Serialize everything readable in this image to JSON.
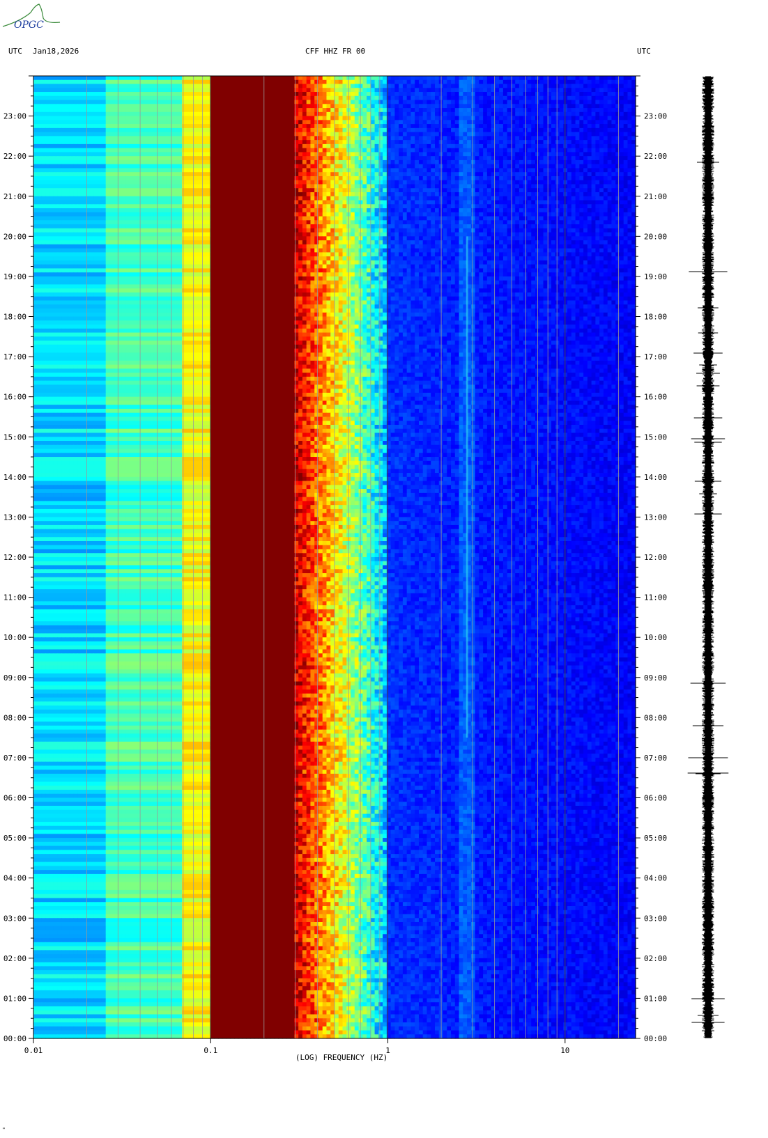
{
  "logo": {
    "text": "OPGC"
  },
  "header": {
    "left_tz": "UTC",
    "date": "Jan18,2026",
    "station": "CFF HHZ FR 00",
    "right_tz": "UTC"
  },
  "footer_mark": "\"",
  "chart_data": {
    "type": "heatmap",
    "title": "CFF HHZ FR 00",
    "subtitle": "Jan18,2026",
    "xlabel": "(LOG) FREQUENCY (HZ)",
    "ylabel": "UTC",
    "x_scale": "log",
    "xlim": [
      0.01,
      25
    ],
    "x_ticks": [
      0.01,
      0.1,
      1,
      10
    ],
    "x_tick_labels": [
      "0.01",
      "0.1",
      "1",
      "10"
    ],
    "y_ticks": [
      "00:00",
      "01:00",
      "02:00",
      "03:00",
      "04:00",
      "05:00",
      "06:00",
      "07:00",
      "08:00",
      "09:00",
      "10:00",
      "11:00",
      "12:00",
      "13:00",
      "14:00",
      "15:00",
      "16:00",
      "17:00",
      "18:00",
      "19:00",
      "20:00",
      "21:00",
      "22:00",
      "23:00"
    ],
    "ylim_hours": [
      0,
      24
    ],
    "colormap": "jet",
    "bands": [
      {
        "f_min": 0.01,
        "f_max": 0.025,
        "level": "cyan"
      },
      {
        "f_min": 0.025,
        "f_max": 0.07,
        "level": "cyan-green"
      },
      {
        "f_min": 0.07,
        "f_max": 0.1,
        "level": "yellow"
      },
      {
        "f_min": 0.1,
        "f_max": 0.3,
        "level": "dark-red"
      },
      {
        "f_min": 0.3,
        "f_max": 0.6,
        "level": "red-orange"
      },
      {
        "f_min": 0.6,
        "f_max": 1.0,
        "level": "yellow-cyan"
      },
      {
        "f_min": 1.0,
        "f_max": 25,
        "level": "blue"
      }
    ],
    "spectral_line_hz": 2.8,
    "grid": true,
    "colors": {
      "dark_red": "#800000",
      "blue": "#0a28d8",
      "cyan": "#14c8f0",
      "yellow": "#f0f000"
    }
  }
}
